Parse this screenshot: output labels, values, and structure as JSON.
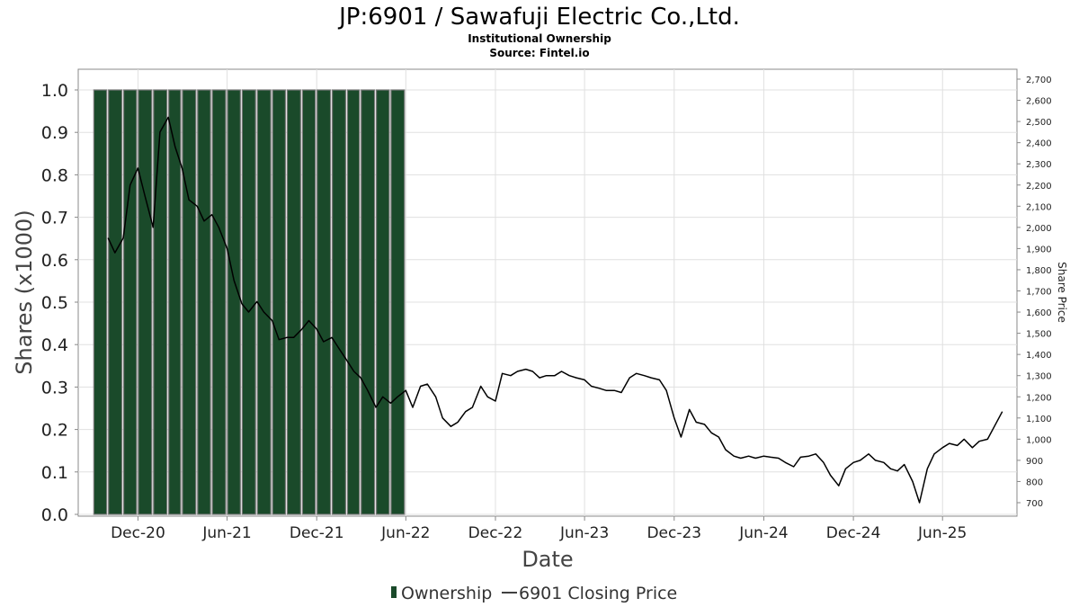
{
  "chart_data": {
    "type": "bar+line",
    "title": "JP:6901 / Sawafuji Electric Co.,Ltd.",
    "subtitle": "Institutional Ownership",
    "source": "Source: Fintel.io",
    "xlabel": "Date",
    "ylabel": "Shares (x1000)",
    "y2label": "Share Price",
    "ylim": [
      0,
      1.05
    ],
    "y2lim": [
      645,
      2725
    ],
    "xlim": [
      "2020-08-01",
      "2025-10-31"
    ],
    "grid": true,
    "legend_position": "bottom",
    "colors": {
      "ownership": "#1a4a2a",
      "ownership_edge": "#7a7a7a",
      "price": "#000000",
      "grid": "#e0e0e0",
      "frame": "#888888"
    },
    "yticks": [
      "0.0",
      "0.1",
      "0.2",
      "0.3",
      "0.4",
      "0.5",
      "0.6",
      "0.7",
      "0.8",
      "0.9",
      "1.0"
    ],
    "y2ticks": [
      "700",
      "800",
      "900",
      "1,000",
      "1,100",
      "1,200",
      "1,300",
      "1,400",
      "1,500",
      "1,600",
      "1,700",
      "1,800",
      "1,900",
      "2,000",
      "2,100",
      "2,200",
      "2,300",
      "2,400",
      "2,500",
      "2,600",
      "2,700"
    ],
    "xticks": [
      {
        "label": "Dec-20",
        "date": "2020-12-01"
      },
      {
        "label": "Jun-21",
        "date": "2021-06-01"
      },
      {
        "label": "Dec-21",
        "date": "2021-12-01"
      },
      {
        "label": "Jun-22",
        "date": "2022-06-01"
      },
      {
        "label": "Dec-22",
        "date": "2022-12-01"
      },
      {
        "label": "Jun-23",
        "date": "2023-06-01"
      },
      {
        "label": "Dec-23",
        "date": "2023-12-01"
      },
      {
        "label": "Jun-24",
        "date": "2024-06-01"
      },
      {
        "label": "Dec-24",
        "date": "2024-12-01"
      },
      {
        "label": "Jun-25",
        "date": "2025-06-01"
      }
    ],
    "series": [
      {
        "name": "Ownership",
        "type": "bar",
        "axis": "left",
        "x": [
          "2020-09-30",
          "2020-10-31",
          "2020-11-30",
          "2020-12-31",
          "2021-01-31",
          "2021-02-28",
          "2021-03-31",
          "2021-04-30",
          "2021-05-31",
          "2021-06-30",
          "2021-07-31",
          "2021-08-31",
          "2021-09-30",
          "2021-10-31",
          "2021-11-30",
          "2021-12-31",
          "2022-01-31",
          "2022-02-28",
          "2022-03-31",
          "2022-04-30",
          "2022-05-31"
        ],
        "values": [
          1,
          1,
          1,
          1,
          1,
          1,
          1,
          1,
          1,
          1,
          1,
          1,
          1,
          1,
          1,
          1,
          1,
          1,
          1,
          1,
          1
        ]
      },
      {
        "name": "6901 Closing Price",
        "type": "line",
        "axis": "right",
        "x": [
          "2020-10-01",
          "2020-10-15",
          "2020-11-01",
          "2020-11-15",
          "2020-12-01",
          "2020-12-15",
          "2021-01-01",
          "2021-01-15",
          "2021-02-01",
          "2021-02-15",
          "2021-03-01",
          "2021-03-15",
          "2021-04-01",
          "2021-04-15",
          "2021-05-01",
          "2021-05-15",
          "2021-06-01",
          "2021-06-15",
          "2021-07-01",
          "2021-07-15",
          "2021-08-01",
          "2021-08-15",
          "2021-09-01",
          "2021-09-15",
          "2021-10-01",
          "2021-10-15",
          "2021-11-01",
          "2021-11-15",
          "2021-12-01",
          "2021-12-15",
          "2022-01-01",
          "2022-01-15",
          "2022-02-01",
          "2022-02-15",
          "2022-03-01",
          "2022-03-15",
          "2022-04-01",
          "2022-04-15",
          "2022-05-01",
          "2022-05-15",
          "2022-06-01",
          "2022-06-15",
          "2022-07-01",
          "2022-07-15",
          "2022-08-01",
          "2022-08-15",
          "2022-09-01",
          "2022-09-15",
          "2022-10-01",
          "2022-10-15",
          "2022-11-01",
          "2022-11-15",
          "2022-12-01",
          "2022-12-15",
          "2023-01-01",
          "2023-01-15",
          "2023-02-01",
          "2023-02-15",
          "2023-03-01",
          "2023-03-15",
          "2023-04-01",
          "2023-04-15",
          "2023-05-01",
          "2023-05-15",
          "2023-06-01",
          "2023-06-15",
          "2023-07-01",
          "2023-07-15",
          "2023-08-01",
          "2023-08-15",
          "2023-09-01",
          "2023-09-15",
          "2023-10-01",
          "2023-10-15",
          "2023-11-01",
          "2023-11-15",
          "2023-12-01",
          "2023-12-15",
          "2024-01-01",
          "2024-01-15",
          "2024-02-01",
          "2024-02-15",
          "2024-03-01",
          "2024-03-15",
          "2024-04-01",
          "2024-04-15",
          "2024-05-01",
          "2024-05-15",
          "2024-06-01",
          "2024-06-15",
          "2024-07-01",
          "2024-07-15",
          "2024-08-01",
          "2024-08-15",
          "2024-09-01",
          "2024-09-15",
          "2024-10-01",
          "2024-10-15",
          "2024-11-01",
          "2024-11-15",
          "2024-12-01",
          "2024-12-15",
          "2025-01-01",
          "2025-01-15",
          "2025-02-01",
          "2025-02-15",
          "2025-03-01",
          "2025-03-15",
          "2025-04-01",
          "2025-04-15",
          "2025-05-01",
          "2025-05-15",
          "2025-06-01",
          "2025-06-15",
          "2025-07-01",
          "2025-07-15",
          "2025-08-01",
          "2025-08-15",
          "2025-09-01",
          "2025-09-15",
          "2025-10-01"
        ],
        "values": [
          1950,
          1880,
          1950,
          2200,
          2280,
          2150,
          2000,
          2450,
          2520,
          2380,
          2280,
          2130,
          2100,
          2030,
          2060,
          2000,
          1900,
          1750,
          1640,
          1600,
          1650,
          1600,
          1560,
          1470,
          1480,
          1480,
          1520,
          1560,
          1520,
          1460,
          1480,
          1430,
          1370,
          1320,
          1290,
          1230,
          1150,
          1200,
          1170,
          1200,
          1230,
          1150,
          1250,
          1260,
          1200,
          1100,
          1060,
          1080,
          1130,
          1150,
          1250,
          1200,
          1180,
          1310,
          1300,
          1320,
          1330,
          1320,
          1290,
          1300,
          1300,
          1320,
          1300,
          1290,
          1280,
          1250,
          1240,
          1230,
          1230,
          1220,
          1290,
          1310,
          1300,
          1290,
          1280,
          1230,
          1100,
          1010,
          1140,
          1080,
          1070,
          1030,
          1010,
          950,
          920,
          910,
          920,
          910,
          920,
          915,
          910,
          890,
          870,
          915,
          920,
          930,
          890,
          830,
          780,
          860,
          890,
          900,
          930,
          900,
          890,
          860,
          850,
          880,
          800,
          700,
          860,
          930,
          960,
          980,
          970,
          1000,
          960,
          990,
          1000,
          1060,
          1130
        ]
      }
    ]
  },
  "legend": {
    "ownership_label": "Ownership",
    "price_label": "6901 Closing Price"
  }
}
